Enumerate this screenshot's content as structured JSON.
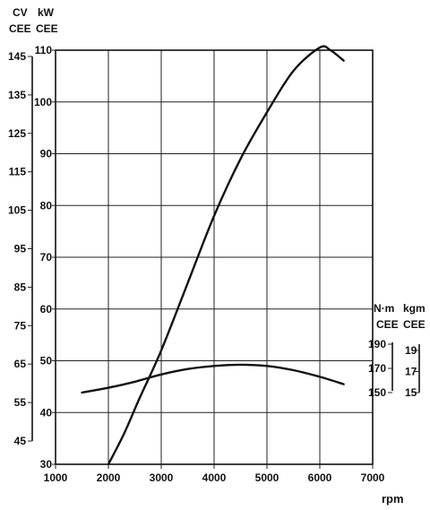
{
  "chart_data": {
    "type": "line",
    "xlabel": "rpm",
    "x_ticks": [
      "1000",
      "2000",
      "3000",
      "4000",
      "5000",
      "6000",
      "7000"
    ],
    "xlim": [
      1000,
      7000
    ],
    "power_axes": {
      "kw": {
        "units": [
          "kW",
          "CEE"
        ],
        "ticks": [
          "30",
          "40",
          "50",
          "60",
          "70",
          "80",
          "90",
          "100",
          "110"
        ],
        "range": [
          30,
          110
        ]
      },
      "cv": {
        "units": [
          "CV",
          "CEE"
        ],
        "ticks": [
          "45",
          "55",
          "65",
          "75",
          "85",
          "95",
          "105",
          "115",
          "125",
          "135",
          "145"
        ],
        "range": [
          45,
          145
        ]
      }
    },
    "torque_axes": {
      "nm": {
        "units": [
          "N·m",
          "CEE"
        ],
        "ticks": [
          "190",
          "170",
          "150"
        ],
        "range": [
          150,
          190
        ]
      },
      "kgm": {
        "units": [
          "kgm",
          "CEE"
        ],
        "ticks": [
          "19",
          "17",
          "15"
        ],
        "range": [
          15,
          19
        ]
      }
    },
    "series": [
      {
        "axis": "power_kW",
        "x": [
          2000,
          2300,
          2600,
          3000,
          3500,
          4000,
          4500,
          5000,
          5500,
          6000,
          6200,
          6450
        ],
        "y": [
          30,
          36,
          43,
          52,
          65,
          78,
          89,
          98,
          106,
          110.5,
          110,
          108
        ]
      },
      {
        "axis": "torque_Nm",
        "x": [
          1500,
          2000,
          2500,
          3000,
          3500,
          4000,
          4500,
          5000,
          5500,
          6000,
          6450
        ],
        "y": [
          150,
          154,
          159,
          165,
          169.5,
          172,
          173,
          172,
          168.5,
          163,
          157
        ]
      }
    ]
  }
}
